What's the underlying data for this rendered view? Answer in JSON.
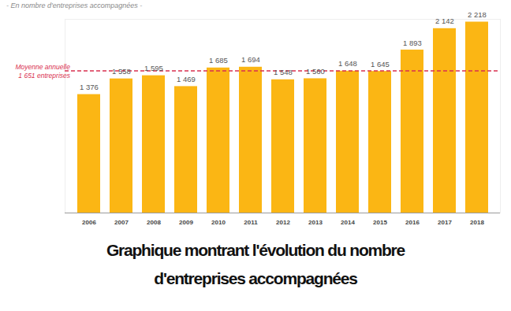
{
  "chart_data": {
    "type": "bar",
    "subtitle": "- En nombre d'entreprises accompagnées -",
    "caption": "Graphique montrant l'évolution du nombre d'entreprises accompagnées",
    "categories": [
      "2006",
      "2007",
      "2008",
      "2009",
      "2010",
      "2011",
      "2012",
      "2013",
      "2014",
      "2015",
      "2016",
      "2017",
      "2018"
    ],
    "values": [
      1376,
      1558,
      1595,
      1469,
      1685,
      1694,
      1548,
      1560,
      1648,
      1645,
      1893,
      2142,
      2218
    ],
    "value_labels": [
      "1 376",
      "1 558",
      "1 595",
      "1 469",
      "1 685",
      "1 694",
      "1 548",
      "1 560",
      "1 648",
      "1 645",
      "1 893",
      "2 142",
      "2 218"
    ],
    "data_labels": true,
    "color": "#fbb614",
    "ylim": [
      0,
      2250
    ],
    "yticks": [],
    "tick_labels": "x",
    "grid": false,
    "reference_line": {
      "value": 1651,
      "label": [
        "Moyenne annuelle",
        "1 651 entreprises"
      ],
      "color": "#d9304f",
      "line_style": "dashed"
    }
  }
}
